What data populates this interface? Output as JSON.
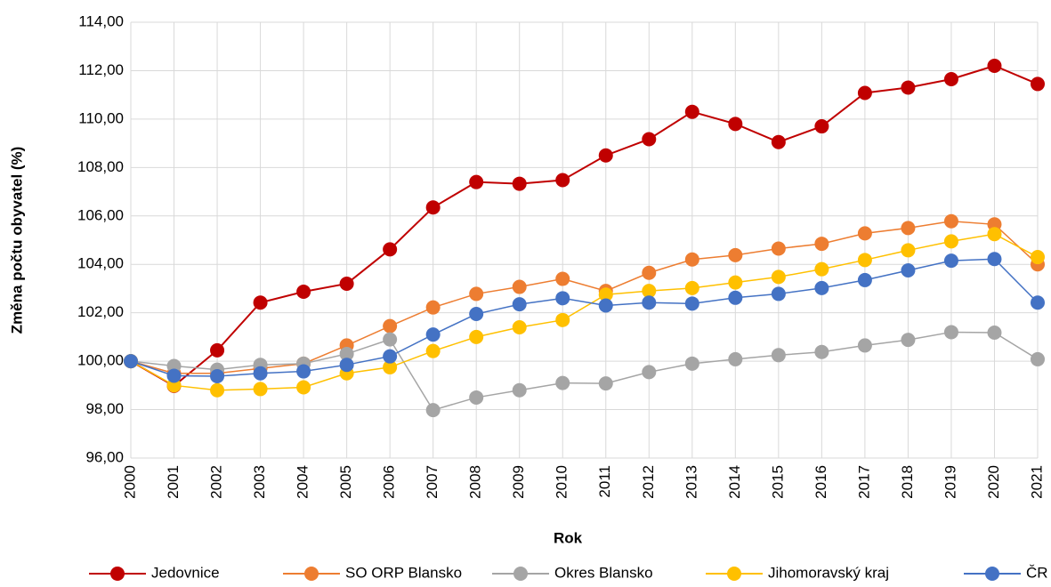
{
  "chart_data": {
    "type": "line",
    "xlabel": "Rok",
    "ylabel": "Změna počtu obyvatel (%)",
    "categories": [
      "2000",
      "2001",
      "2002",
      "2003",
      "2004",
      "2005",
      "2006",
      "2007",
      "2008",
      "2009",
      "2010",
      "2011",
      "2012",
      "2013",
      "2014",
      "2015",
      "2016",
      "2017",
      "2018",
      "2019",
      "2020",
      "2021"
    ],
    "series": [
      {
        "name": "Jedovnice",
        "color": "#c00000",
        "values": [
          100,
          98.98,
          100.45,
          102.42,
          102.87,
          103.2,
          104.62,
          106.35,
          107.4,
          107.33,
          107.48,
          108.5,
          109.17,
          110.3,
          109.8,
          109.05,
          109.7,
          111.08,
          111.3,
          111.65,
          112.2,
          111.45
        ]
      },
      {
        "name": "SO ORP Blansko",
        "color": "#ed7d31",
        "values": [
          100,
          99.5,
          99.5,
          99.7,
          99.9,
          100.65,
          101.45,
          102.22,
          102.78,
          103.07,
          103.4,
          102.9,
          103.65,
          104.2,
          104.38,
          104.65,
          104.85,
          105.28,
          105.5,
          105.78,
          105.65,
          104.0
        ]
      },
      {
        "name": "Okres Blansko",
        "color": "#a5a5a5",
        "values": [
          100,
          99.8,
          99.65,
          99.85,
          99.9,
          100.3,
          100.9,
          97.98,
          98.5,
          98.8,
          99.1,
          99.08,
          99.55,
          99.9,
          100.08,
          100.25,
          100.38,
          100.65,
          100.88,
          101.2,
          101.18,
          100.08
        ]
      },
      {
        "name": "Jihomoravský kraj",
        "color": "#ffc000",
        "values": [
          100,
          99.0,
          98.8,
          98.85,
          98.92,
          99.5,
          99.75,
          100.42,
          101.0,
          101.4,
          101.7,
          102.75,
          102.9,
          103.02,
          103.25,
          103.48,
          103.8,
          104.18,
          104.58,
          104.95,
          105.25,
          104.3
        ]
      },
      {
        "name": "ČR",
        "color": "#4472c4",
        "values": [
          100,
          99.4,
          99.38,
          99.5,
          99.58,
          99.85,
          100.2,
          101.1,
          101.95,
          102.35,
          102.6,
          102.3,
          102.42,
          102.38,
          102.62,
          102.78,
          103.02,
          103.35,
          103.75,
          104.15,
          104.22,
          102.42
        ]
      }
    ],
    "ylim": [
      96,
      114
    ],
    "yticks": [
      {
        "value": 96,
        "label": "96,00"
      },
      {
        "value": 98,
        "label": "98,00"
      },
      {
        "value": 100,
        "label": "100,00"
      },
      {
        "value": 102,
        "label": "102,00"
      },
      {
        "value": 104,
        "label": "104,00"
      },
      {
        "value": 106,
        "label": "106,00"
      },
      {
        "value": 108,
        "label": "108,00"
      },
      {
        "value": 110,
        "label": "110,00"
      },
      {
        "value": 112,
        "label": "112,00"
      },
      {
        "value": 114,
        "label": "114,00"
      }
    ],
    "grid": true,
    "legend": "bottom"
  }
}
